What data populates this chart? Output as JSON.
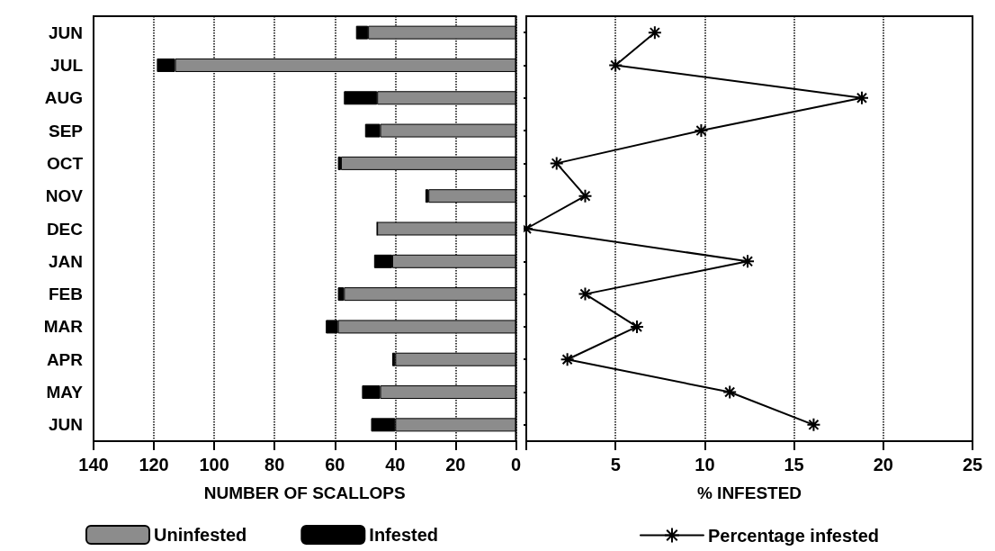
{
  "chart_data": [
    {
      "type": "bar",
      "orientation": "horizontal",
      "stacked": true,
      "categories": [
        "JUN",
        "JUL",
        "AUG",
        "SEP",
        "OCT",
        "NOV",
        "DEC",
        "JAN",
        "FEB",
        "MAR",
        "APR",
        "MAY",
        "JUN"
      ],
      "series": [
        {
          "name": "Uninfested",
          "color": "#8c8c8c",
          "values": [
            49,
            113,
            46,
            45,
            58,
            29,
            46,
            41,
            57,
            59,
            40,
            45,
            40
          ]
        },
        {
          "name": "Infested",
          "color": "#000000",
          "values": [
            4,
            6,
            11,
            5,
            1,
            1,
            0,
            6,
            2,
            4,
            1,
            6,
            8
          ]
        }
      ],
      "xlim": [
        140,
        0
      ],
      "xticks": [
        140,
        120,
        100,
        80,
        60,
        40,
        20,
        0
      ],
      "xlabel": "NUMBER OF SCALLOPS",
      "grid": "x",
      "legend": "bottom"
    },
    {
      "type": "line",
      "orientation": "horizontal",
      "categories": [
        null,
        null,
        null,
        null,
        null,
        null,
        null,
        null,
        null,
        null,
        null,
        null,
        null
      ],
      "series": [
        {
          "name": "Percentage infested",
          "color": "#000000",
          "values": [
            7.2,
            5.0,
            18.8,
            9.8,
            1.7,
            3.3,
            0,
            12.4,
            3.3,
            6.2,
            2.3,
            11.4,
            16.1
          ]
        }
      ],
      "xlim": [
        0,
        25
      ],
      "xticks": [
        {
          "value": 0,
          "label": null
        },
        5,
        10,
        15,
        20,
        25
      ],
      "xlabel": "% INFESTED",
      "grid": "x",
      "legend": "bottom",
      "marker": "cross",
      "line_style": "solid",
      "tick_labels": "x"
    }
  ]
}
